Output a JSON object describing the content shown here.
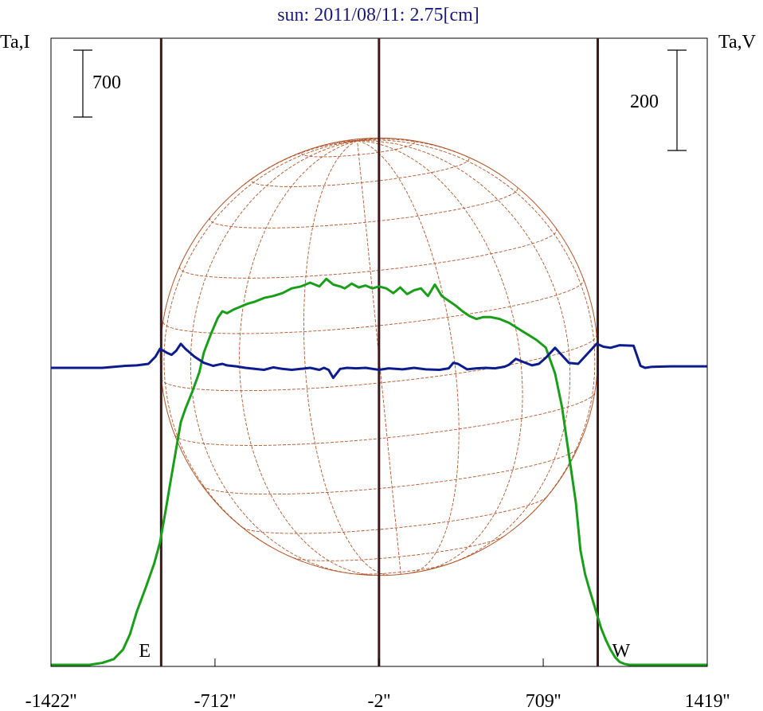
{
  "chart_data": {
    "type": "line",
    "title": "sun: 2011/08/11: 2.75[cm]",
    "left_axis_label": "Ta,I",
    "right_axis_label": "Ta,V",
    "left_scale_bar": 700,
    "right_scale_bar": 200,
    "xlabel": "",
    "x_ticks": [
      "-1422''",
      "-712''",
      "-2''",
      "709''",
      "1419''"
    ],
    "x_tick_values": [
      -1422,
      -712,
      -2,
      709,
      1419
    ],
    "xlim": [
      -1422,
      1419
    ],
    "limb_markers": [
      {
        "label": "E",
        "x": -945
      },
      {
        "label": "W",
        "x": 945
      }
    ],
    "center_marker_x": -2,
    "colors": {
      "intensity": "#1a9e1a",
      "polarization": "#0c1c8c",
      "limb_lines": "#3a1a1a",
      "sun_grid": "#b0552a",
      "title": "#1a1a7a"
    },
    "series": [
      {
        "name": "",
        "unit_scale": "left",
        "color": "#1a9e1a",
        "x": [
          -1422,
          -1255,
          -1200,
          -1150,
          -1110,
          -1080,
          -1050,
          -1010,
          -975,
          -950,
          -940,
          -925,
          -910,
          -900,
          -880,
          -860,
          -840,
          -810,
          -780,
          -760,
          -730,
          -700,
          -680,
          -660,
          -630,
          -600,
          -570,
          -540,
          -500,
          -460,
          -420,
          -380,
          -340,
          -300,
          -260,
          -230,
          -200,
          -170,
          -150,
          -120,
          -90,
          -60,
          -30,
          -2,
          30,
          60,
          90,
          120,
          150,
          180,
          210,
          240,
          270,
          300,
          330,
          360,
          390,
          420,
          450,
          480,
          520,
          560,
          600,
          640,
          680,
          720,
          760,
          790,
          820,
          850,
          870,
          890,
          910,
          930,
          945,
          960,
          980,
          1000,
          1020,
          1040,
          1060,
          1080,
          1100,
          1120,
          1160,
          1419
        ],
        "y": [
          0,
          0,
          20,
          60,
          160,
          320,
          560,
          820,
          1060,
          1280,
          1420,
          1620,
          1840,
          1980,
          2260,
          2540,
          2680,
          2860,
          3060,
          3270,
          3460,
          3630,
          3700,
          3680,
          3720,
          3750,
          3780,
          3800,
          3840,
          3860,
          3890,
          3940,
          3960,
          4000,
          3960,
          4040,
          3980,
          3960,
          3940,
          3990,
          3950,
          3970,
          3940,
          3960,
          3940,
          3890,
          3950,
          3880,
          3920,
          3940,
          3860,
          3980,
          3860,
          3810,
          3760,
          3700,
          3650,
          3620,
          3640,
          3640,
          3620,
          3580,
          3520,
          3460,
          3400,
          3320,
          3050,
          2700,
          2200,
          1700,
          1200,
          950,
          780,
          620,
          500,
          380,
          260,
          160,
          80,
          30,
          10,
          0,
          0,
          0,
          0,
          0
        ]
      },
      {
        "name": "",
        "unit_scale": "right",
        "color": "#0c1c8c",
        "x": [
          -1422,
          -1200,
          -1150,
          -1100,
          -1050,
          -1000,
          -970,
          -950,
          -920,
          -900,
          -880,
          -860,
          -840,
          -800,
          -760,
          -720,
          -700,
          -680,
          -660,
          -620,
          -580,
          -540,
          -500,
          -460,
          -420,
          -380,
          -340,
          -300,
          -260,
          -240,
          -220,
          -200,
          -170,
          -140,
          -100,
          -60,
          -2,
          40,
          100,
          150,
          200,
          260,
          300,
          320,
          340,
          380,
          420,
          460,
          500,
          540,
          560,
          590,
          620,
          660,
          690,
          720,
          760,
          780,
          820,
          860,
          900,
          940,
          970,
          1000,
          1040,
          1100,
          1130,
          1150,
          1180,
          1260,
          1419
        ],
        "y": [
          0,
          0,
          2,
          4,
          5,
          8,
          22,
          38,
          30,
          26,
          34,
          48,
          38,
          22,
          10,
          4,
          6,
          8,
          5,
          3,
          0,
          -2,
          -4,
          1,
          -2,
          -4,
          -2,
          0,
          -4,
          0,
          -4,
          -20,
          -2,
          0,
          -1,
          0,
          -4,
          -1,
          -3,
          0,
          -3,
          -4,
          -1,
          10,
          8,
          -3,
          -1,
          0,
          -1,
          2,
          6,
          18,
          12,
          5,
          8,
          20,
          40,
          30,
          10,
          8,
          28,
          48,
          42,
          40,
          45,
          44,
          4,
          0,
          2,
          3,
          3
        ]
      }
    ]
  }
}
